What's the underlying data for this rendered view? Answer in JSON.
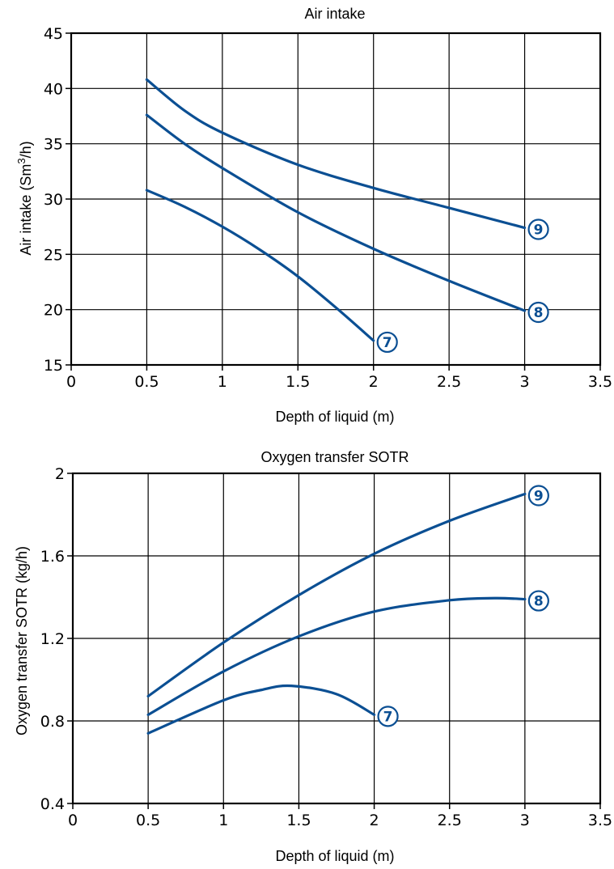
{
  "colors": {
    "series": "#0b4f93",
    "axis": "#000000"
  },
  "chart_data": [
    {
      "type": "line",
      "title": "Air intake",
      "xlabel": "Depth of liquid (m)",
      "ylabel_main": "Air intake (Sm",
      "ylabel_sup": "3",
      "ylabel_tail": "/h)",
      "xlim": [
        0,
        3.5
      ],
      "ylim": [
        15,
        45
      ],
      "x_ticks": [
        0,
        0.5,
        1,
        1.5,
        2,
        2.5,
        3,
        3.5
      ],
      "x_tick_labels": [
        "0",
        "0.5",
        "1",
        "1.5",
        "2",
        "2.5",
        "3",
        "3.5"
      ],
      "y_ticks": [
        15,
        20,
        25,
        30,
        35,
        40,
        45
      ],
      "y_tick_labels": [
        "15",
        "20",
        "25",
        "30",
        "35",
        "40",
        "45"
      ],
      "grid": true,
      "series": [
        {
          "name": "9",
          "x": [
            0.5,
            0.75,
            1,
            1.5,
            2,
            2.5,
            3
          ],
          "y": [
            40.8,
            38.0,
            36.0,
            33.1,
            31.0,
            29.2,
            27.4
          ]
        },
        {
          "name": "8",
          "x": [
            0.5,
            0.75,
            1,
            1.5,
            2,
            2.5,
            3
          ],
          "y": [
            37.6,
            35.0,
            32.8,
            28.8,
            25.5,
            22.6,
            19.9
          ]
        },
        {
          "name": "7",
          "x": [
            0.5,
            0.75,
            1,
            1.25,
            1.5,
            1.75,
            2
          ],
          "y": [
            30.8,
            29.3,
            27.5,
            25.4,
            23.0,
            20.2,
            17.2
          ]
        }
      ]
    },
    {
      "type": "line",
      "title": "Oxygen transfer SOTR",
      "xlabel": "Depth of liquid (m)",
      "ylabel_main": "Oxygen transfer SOTR (kg/h)",
      "ylabel_sup": "",
      "ylabel_tail": "",
      "xlim": [
        0,
        3.5
      ],
      "ylim": [
        0.4,
        2
      ],
      "x_ticks": [
        0,
        0.5,
        1,
        1.5,
        2,
        2.5,
        3,
        3.5
      ],
      "x_tick_labels": [
        "0",
        "0.5",
        "1",
        "1.5",
        "2",
        "2.5",
        "3",
        "3.5"
      ],
      "y_ticks": [
        0.4,
        0.8,
        1.2,
        1.6,
        2
      ],
      "y_tick_labels": [
        "0.4",
        "0.8",
        "1.2",
        "1.6",
        "2"
      ],
      "grid": true,
      "series": [
        {
          "name": "9",
          "x": [
            0.5,
            1,
            1.5,
            2,
            2.5,
            3
          ],
          "y": [
            0.92,
            1.18,
            1.41,
            1.61,
            1.77,
            1.9
          ]
        },
        {
          "name": "8",
          "x": [
            0.5,
            1,
            1.5,
            2,
            2.5,
            2.8,
            3
          ],
          "y": [
            0.83,
            1.04,
            1.21,
            1.33,
            1.385,
            1.395,
            1.39
          ]
        },
        {
          "name": "7",
          "x": [
            0.5,
            1,
            1.25,
            1.45,
            1.75,
            2
          ],
          "y": [
            0.74,
            0.9,
            0.95,
            0.97,
            0.93,
            0.83
          ]
        }
      ]
    }
  ]
}
